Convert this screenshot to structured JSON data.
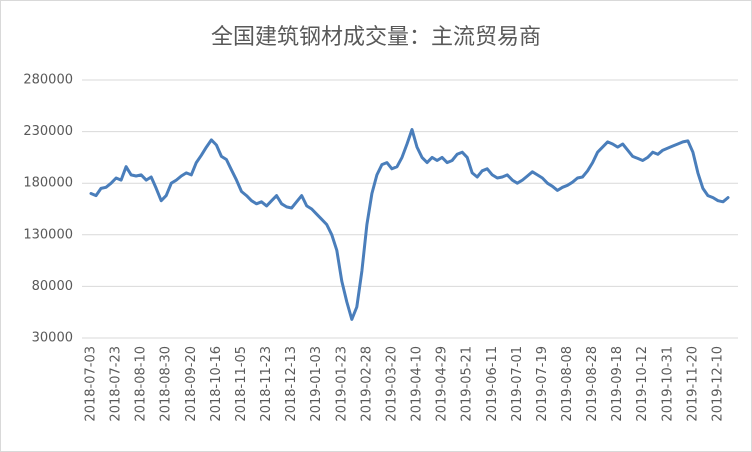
{
  "chart_data": {
    "type": "line",
    "title": "全国建筑钢材成交量：主流贸易商",
    "categories": [
      "2018-07-03",
      null,
      null,
      null,
      null,
      "2018-07-23",
      null,
      null,
      null,
      null,
      "2018-08-10",
      null,
      null,
      null,
      null,
      "2018-08-30",
      null,
      null,
      null,
      null,
      "2018-09-20",
      null,
      null,
      null,
      null,
      "2018-10-16",
      null,
      null,
      null,
      null,
      "2018-11-05",
      null,
      null,
      null,
      null,
      "2018-11-23",
      null,
      null,
      null,
      null,
      "2018-12-13",
      null,
      null,
      null,
      null,
      "2019-01-03",
      null,
      null,
      null,
      null,
      "2019-01-23",
      null,
      null,
      null,
      null,
      "2019-02-28",
      null,
      null,
      null,
      null,
      "2019-03-20",
      null,
      null,
      null,
      null,
      "2019-04-10",
      null,
      null,
      null,
      null,
      "2019-04-29",
      null,
      null,
      null,
      null,
      "2019-05-21",
      null,
      null,
      null,
      null,
      "2019-06-11",
      null,
      null,
      null,
      null,
      "2019-07-01",
      null,
      null,
      null,
      null,
      "2019-07-19",
      null,
      null,
      null,
      null,
      "2019-08-08",
      null,
      null,
      null,
      null,
      "2019-08-28",
      null,
      null,
      null,
      null,
      "2019-09-18",
      null,
      null,
      null,
      null,
      "2019-10-12",
      null,
      null,
      null,
      null,
      "2019-10-31",
      null,
      null,
      null,
      null,
      "2019-11-20",
      null,
      null,
      null,
      null,
      "2019-12-10",
      null,
      null
    ],
    "series": [
      {
        "name": "全国建筑钢材成交量：主流贸易商",
        "color": "#4a7ebb",
        "values": [
          170000,
          168000,
          175000,
          176000,
          180000,
          185000,
          183000,
          196000,
          188000,
          187000,
          188000,
          183000,
          186000,
          175000,
          163000,
          168000,
          180000,
          183000,
          187000,
          190000,
          188000,
          200000,
          207000,
          215000,
          222000,
          217000,
          206000,
          203000,
          193000,
          183000,
          172000,
          168000,
          163000,
          160000,
          162000,
          158000,
          163000,
          168000,
          160000,
          157000,
          156000,
          162000,
          168000,
          158000,
          155000,
          150000,
          145000,
          140000,
          130000,
          115000,
          85000,
          65000,
          48000,
          60000,
          95000,
          140000,
          170000,
          188000,
          198000,
          200000,
          194000,
          196000,
          205000,
          218000,
          232000,
          215000,
          205000,
          200000,
          205000,
          202000,
          205000,
          200000,
          202000,
          208000,
          210000,
          205000,
          190000,
          186000,
          192000,
          194000,
          188000,
          185000,
          186000,
          188000,
          183000,
          180000,
          183000,
          187000,
          191000,
          188000,
          185000,
          180000,
          177000,
          173000,
          176000,
          178000,
          181000,
          185000,
          186000,
          192000,
          200000,
          210000,
          215000,
          220000,
          218000,
          215000,
          218000,
          212000,
          206000,
          204000,
          202000,
          205000,
          210000,
          208000,
          212000,
          214000,
          216000,
          218000,
          220000,
          221000,
          210000,
          190000,
          175000,
          168000,
          166000,
          163000,
          162000,
          166000
        ]
      }
    ],
    "ylim": [
      30000,
      280000
    ],
    "yticks": [
      30000,
      80000,
      130000,
      180000,
      230000,
      280000
    ],
    "grid": true
  }
}
